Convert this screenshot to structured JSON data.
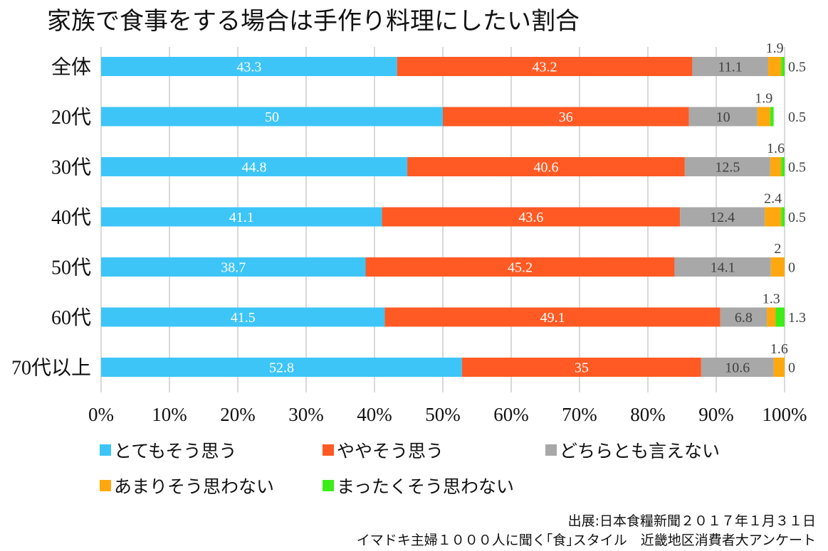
{
  "chart_data": {
    "type": "bar",
    "orientation": "horizontal",
    "stacked": true,
    "title": "家族で食事をする場合は手作り料理にしたい割合",
    "categories": [
      "全体",
      "20代",
      "30代",
      "40代",
      "50代",
      "60代",
      "70代以上"
    ],
    "series": [
      {
        "name": "とてもそう思う",
        "color": "#3ec5f7",
        "values": [
          43.3,
          50,
          44.8,
          41.1,
          38.7,
          41.5,
          52.8
        ]
      },
      {
        "name": "ややそう思う",
        "color": "#ff5a24",
        "values": [
          43.2,
          36,
          40.6,
          43.6,
          45.2,
          49.1,
          35
        ]
      },
      {
        "name": "どちらとも言えない",
        "color": "#a8a8a8",
        "values": [
          11.1,
          10,
          12.5,
          12.4,
          14.1,
          6.8,
          10.6
        ]
      },
      {
        "name": "あまりそう思わない",
        "color": "#ffa70f",
        "values": [
          1.9,
          1.9,
          1.6,
          2.4,
          2,
          1.3,
          1.6
        ]
      },
      {
        "name": "まったくそう思わない",
        "color": "#3ded17",
        "values": [
          0.5,
          0.5,
          0.5,
          0.5,
          0,
          1.3,
          0
        ]
      }
    ],
    "xlim": [
      0,
      100
    ],
    "x_ticks": [
      "0%",
      "10%",
      "20%",
      "30%",
      "40%",
      "50%",
      "60%",
      "70%",
      "80%",
      "90%",
      "100%"
    ],
    "grid": true,
    "legend_position": "bottom"
  },
  "source": {
    "line1": "出展:日本食糧新聞２０１７年１月３１日",
    "line2": "イマドキ主婦１０００人に聞く｢食｣スタイル　近畿地区消費者大アンケート"
  }
}
